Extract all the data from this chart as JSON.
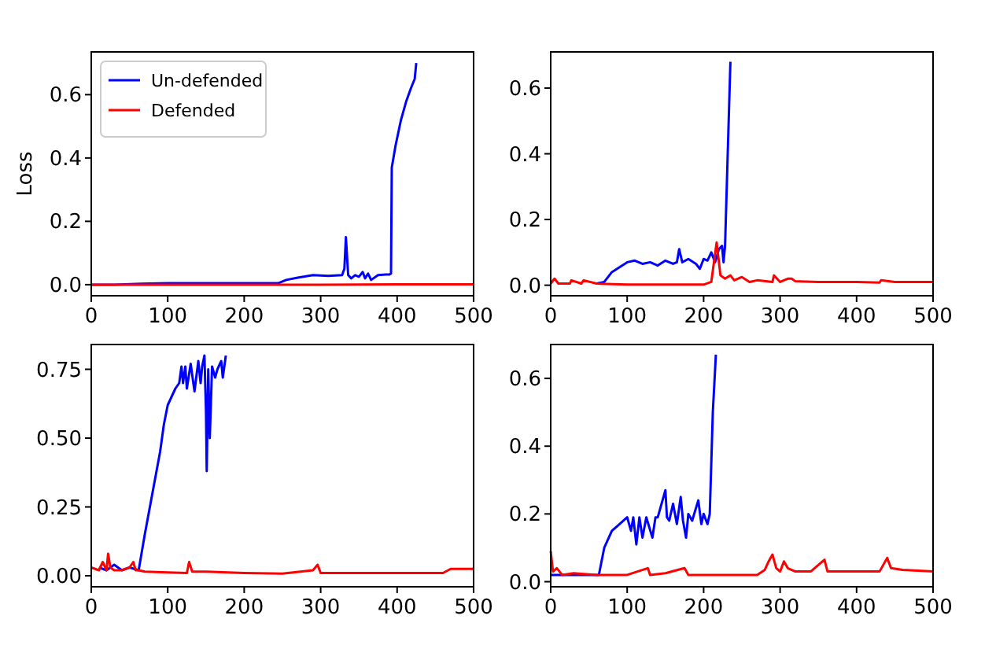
{
  "chart_data": [
    {
      "type": "line",
      "ylabel": "Loss",
      "xlim": [
        0,
        500
      ],
      "xticks": [
        0,
        100,
        200,
        300,
        400,
        500
      ],
      "ylim": [
        -0.035,
        0.735
      ],
      "yticks": [
        {
          "value": 0,
          "label": "0.0"
        },
        {
          "value": 0.2,
          "label": "0.2"
        },
        {
          "value": 0.4,
          "label": "0.4"
        },
        {
          "value": 0.6,
          "label": "0.6"
        }
      ],
      "legend": "top left",
      "series": [
        {
          "name": "Un-defended",
          "color": "#0000ff",
          "x": [
            0,
            30,
            65,
            100,
            150,
            200,
            245,
            255,
            270,
            290,
            310,
            328,
            331,
            333,
            336,
            340,
            345,
            350,
            355,
            358,
            362,
            366,
            375,
            385,
            390,
            392,
            393,
            398,
            405,
            412,
            418,
            423,
            425
          ],
          "values": [
            0,
            0,
            0.003,
            0.005,
            0.005,
            0.005,
            0.005,
            0.015,
            0.022,
            0.03,
            0.028,
            0.03,
            0.05,
            0.15,
            0.03,
            0.02,
            0.03,
            0.025,
            0.04,
            0.02,
            0.035,
            0.015,
            0.03,
            0.032,
            0.032,
            0.035,
            0.37,
            0.44,
            0.52,
            0.58,
            0.62,
            0.65,
            0.7
          ]
        },
        {
          "name": "Defended",
          "color": "#ff0000",
          "x": [
            0,
            100,
            200,
            300,
            400,
            500
          ],
          "values": [
            0,
            0,
            0,
            0,
            0.001,
            0.001
          ]
        }
      ]
    },
    {
      "type": "line",
      "xlim": [
        0,
        500
      ],
      "xticks": [
        0,
        100,
        200,
        300,
        400,
        500
      ],
      "ylim": [
        -0.032,
        0.71
      ],
      "yticks": [
        {
          "value": 0,
          "label": "0.0"
        },
        {
          "value": 0.2,
          "label": "0.2"
        },
        {
          "value": 0.4,
          "label": "0.4"
        },
        {
          "value": 0.6,
          "label": "0.6"
        }
      ],
      "series": [
        {
          "color": "#0000ff",
          "x": [
            60,
            70,
            80,
            90,
            100,
            110,
            120,
            130,
            140,
            150,
            160,
            165,
            168,
            172,
            180,
            190,
            195,
            200,
            205,
            210,
            215,
            220,
            224,
            226,
            228,
            235
          ],
          "values": [
            0.005,
            0.01,
            0.04,
            0.055,
            0.07,
            0.075,
            0.065,
            0.07,
            0.06,
            0.075,
            0.065,
            0.07,
            0.11,
            0.07,
            0.08,
            0.065,
            0.05,
            0.08,
            0.075,
            0.1,
            0.07,
            0.11,
            0.12,
            0.07,
            0.12,
            0.68
          ]
        },
        {
          "color": "#ff0000",
          "x": [
            0,
            5,
            10,
            25,
            27,
            40,
            43,
            60,
            100,
            150,
            200,
            210,
            217,
            222,
            228,
            235,
            240,
            250,
            260,
            270,
            290,
            292,
            300,
            310,
            315,
            320,
            350,
            400,
            430,
            432,
            450,
            500
          ],
          "values": [
            0.005,
            0.02,
            0.005,
            0.005,
            0.015,
            0.005,
            0.015,
            0.005,
            0.002,
            0.002,
            0.002,
            0.01,
            0.13,
            0.03,
            0.02,
            0.03,
            0.015,
            0.025,
            0.01,
            0.015,
            0.01,
            0.03,
            0.01,
            0.02,
            0.02,
            0.012,
            0.01,
            0.01,
            0.008,
            0.015,
            0.01,
            0.01
          ]
        }
      ]
    },
    {
      "type": "line",
      "xlim": [
        0,
        500
      ],
      "xticks": [
        0,
        100,
        200,
        300,
        400,
        500
      ],
      "ylim": [
        -0.04,
        0.84
      ],
      "yticks": [
        {
          "value": 0,
          "label": "0.00"
        },
        {
          "value": 0.25,
          "label": "0.25"
        },
        {
          "value": 0.5,
          "label": "0.50"
        },
        {
          "value": 0.75,
          "label": "0.75"
        }
      ],
      "series": [
        {
          "color": "#0000ff",
          "x": [
            10,
            20,
            30,
            40,
            50,
            62,
            70,
            80,
            90,
            95,
            100,
            105,
            110,
            115,
            118,
            120,
            123,
            125,
            130,
            135,
            140,
            143,
            145,
            148,
            150,
            151,
            153,
            155,
            158,
            162,
            165,
            170,
            172,
            176
          ],
          "values": [
            0.03,
            0.02,
            0.04,
            0.02,
            0.03,
            0.02,
            0.15,
            0.3,
            0.45,
            0.55,
            0.62,
            0.65,
            0.68,
            0.7,
            0.76,
            0.7,
            0.76,
            0.68,
            0.77,
            0.67,
            0.78,
            0.7,
            0.76,
            0.8,
            0.6,
            0.38,
            0.75,
            0.5,
            0.76,
            0.72,
            0.75,
            0.78,
            0.72,
            0.8
          ]
        },
        {
          "color": "#ff0000",
          "x": [
            0,
            10,
            15,
            20,
            22,
            25,
            30,
            40,
            50,
            55,
            58,
            62,
            70,
            100,
            125,
            128,
            132,
            150,
            200,
            250,
            290,
            296,
            300,
            305,
            350,
            400,
            460,
            470,
            500
          ],
          "values": [
            0.03,
            0.02,
            0.05,
            0.02,
            0.08,
            0.03,
            0.02,
            0.02,
            0.03,
            0.05,
            0.02,
            0.02,
            0.015,
            0.012,
            0.01,
            0.05,
            0.015,
            0.015,
            0.01,
            0.008,
            0.02,
            0.04,
            0.01,
            0.01,
            0.01,
            0.01,
            0.01,
            0.025,
            0.025
          ]
        }
      ]
    },
    {
      "type": "line",
      "xlim": [
        0,
        500
      ],
      "xticks": [
        0,
        100,
        200,
        300,
        400,
        500
      ],
      "ylim": [
        -0.015,
        0.7
      ],
      "yticks": [
        {
          "value": 0,
          "label": "0.0"
        },
        {
          "value": 0.2,
          "label": "0.2"
        },
        {
          "value": 0.4,
          "label": "0.4"
        },
        {
          "value": 0.6,
          "label": "0.6"
        }
      ],
      "series": [
        {
          "color": "#0000ff",
          "x": [
            0,
            30,
            63,
            70,
            80,
            90,
            100,
            105,
            108,
            112,
            116,
            120,
            125,
            133,
            137,
            140,
            150,
            152,
            155,
            160,
            165,
            170,
            173,
            177,
            180,
            185,
            193,
            197,
            200,
            205,
            208,
            212,
            216
          ],
          "values": [
            0.02,
            0.02,
            0.02,
            0.1,
            0.15,
            0.17,
            0.19,
            0.15,
            0.19,
            0.11,
            0.19,
            0.13,
            0.19,
            0.13,
            0.19,
            0.19,
            0.27,
            0.19,
            0.18,
            0.23,
            0.17,
            0.25,
            0.18,
            0.13,
            0.2,
            0.18,
            0.24,
            0.17,
            0.2,
            0.17,
            0.2,
            0.5,
            0.67
          ]
        },
        {
          "color": "#ff0000",
          "x": [
            0,
            3,
            8,
            15,
            30,
            60,
            100,
            127,
            130,
            150,
            175,
            180,
            200,
            250,
            270,
            280,
            285,
            290,
            295,
            300,
            305,
            310,
            320,
            340,
            358,
            362,
            400,
            430,
            440,
            445,
            460,
            500
          ],
          "values": [
            0.09,
            0.03,
            0.04,
            0.02,
            0.025,
            0.02,
            0.02,
            0.04,
            0.02,
            0.025,
            0.04,
            0.02,
            0.02,
            0.02,
            0.02,
            0.035,
            0.06,
            0.08,
            0.04,
            0.03,
            0.06,
            0.04,
            0.03,
            0.03,
            0.065,
            0.03,
            0.03,
            0.03,
            0.07,
            0.04,
            0.035,
            0.03
          ]
        }
      ]
    }
  ]
}
